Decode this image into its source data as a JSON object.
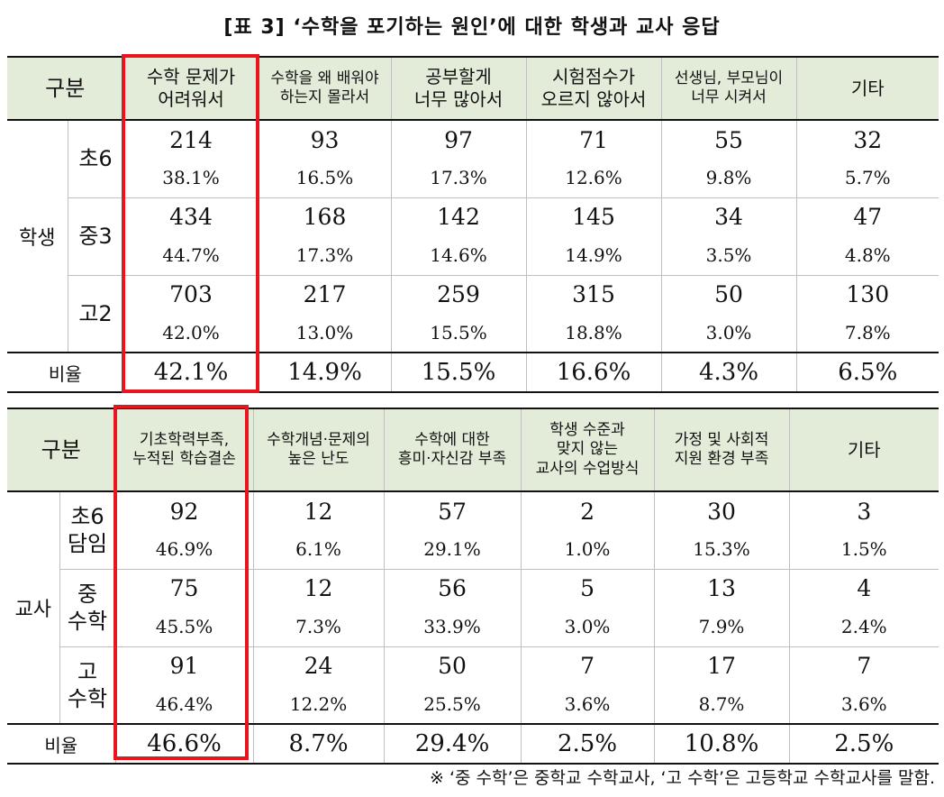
{
  "title": "[표 3] ‘수학을 포기하는 원인’에 대한 학생과 교사 응답",
  "student_table": {
    "header_label": "구분",
    "columns": [
      "수학 문제가\n어려워서",
      "수학을 왜 배워야\n하는지 몰라서",
      "공부할게\n너무 많아서",
      "시험점수가\n오르지 않아서",
      "선생님, 부모님이\n너무 시켜서",
      "기타"
    ],
    "group_label": "학생",
    "rows": [
      {
        "label": "초6",
        "counts": [
          "214",
          "93",
          "97",
          "71",
          "55",
          "32"
        ],
        "pcts": [
          "38.1%",
          "16.5%",
          "17.3%",
          "12.6%",
          "9.8%",
          "5.7%"
        ]
      },
      {
        "label": "중3",
        "counts": [
          "434",
          "168",
          "142",
          "145",
          "34",
          "47"
        ],
        "pcts": [
          "44.7%",
          "17.3%",
          "14.6%",
          "14.9%",
          "3.5%",
          "4.8%"
        ]
      },
      {
        "label": "고2",
        "counts": [
          "703",
          "217",
          "259",
          "315",
          "50",
          "130"
        ],
        "pcts": [
          "42.0%",
          "13.0%",
          "15.5%",
          "18.8%",
          "3.0%",
          "7.8%"
        ]
      }
    ],
    "total_label": "비율",
    "totals": [
      "42.1%",
      "14.9%",
      "15.5%",
      "16.6%",
      "4.3%",
      "6.5%"
    ]
  },
  "teacher_table": {
    "header_label": "구분",
    "columns": [
      "기초학력부족,\n누적된 학습결손",
      "수학개념·문제의\n높은 난도",
      "수학에 대한\n흥미·자신감 부족",
      "학생 수준과\n맞지 않는\n교사의 수업방식",
      "가정 및 사회적\n지원 환경 부족",
      "기타"
    ],
    "group_label": "교사",
    "rows": [
      {
        "label": "초6\n담임",
        "counts": [
          "92",
          "12",
          "57",
          "2",
          "30",
          "3"
        ],
        "pcts": [
          "46.9%",
          "6.1%",
          "29.1%",
          "1.0%",
          "15.3%",
          "1.5%"
        ]
      },
      {
        "label": "중\n수학",
        "counts": [
          "75",
          "12",
          "56",
          "5",
          "13",
          "4"
        ],
        "pcts": [
          "45.5%",
          "7.3%",
          "33.9%",
          "3.0%",
          "7.9%",
          "2.4%"
        ]
      },
      {
        "label": "고\n수학",
        "counts": [
          "91",
          "24",
          "50",
          "7",
          "17",
          "7"
        ],
        "pcts": [
          "46.4%",
          "12.2%",
          "25.5%",
          "3.6%",
          "8.7%",
          "3.6%"
        ]
      }
    ],
    "total_label": "비율",
    "totals": [
      "46.6%",
      "8.7%",
      "29.4%",
      "2.5%",
      "10.8%",
      "2.5%"
    ]
  },
  "footnote": "※ ‘중 수학’은 중학교 수학교사, ‘고 수학’은 고등학교 수학교사를 말함.",
  "colors": {
    "header_bg": "#e3ecd9",
    "highlight": "#e8141e"
  }
}
